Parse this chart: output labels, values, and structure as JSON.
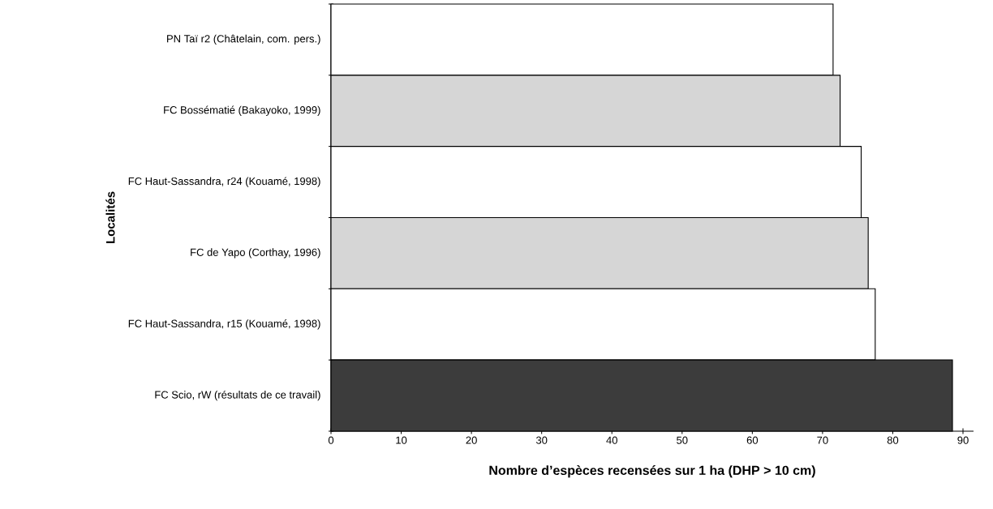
{
  "chart_data": {
    "type": "bar",
    "orientation": "horizontal",
    "xlabel": "Nombre d’espèces recensées sur 1 ha (DHP > 10 cm)",
    "ylabel": "Localités",
    "categories": [
      "PN Taï r2 (Châtelain, com. pers.)",
      "FC Bossématié (Bakayoko, 1999)",
      "FC Haut-Sassandra, r24 (Kouamé, 1998)",
      "FC de Yapo (Corthay, 1996)",
      "FC Haut-Sassandra, r15 (Kouamé, 1998)",
      "FC Scio, rW (résultats de ce travail)"
    ],
    "values": [
      71.5,
      72.5,
      75.5,
      76.5,
      77.5,
      88.5
    ],
    "colors": [
      "#ffffff",
      "#d6d6d6",
      "#ffffff",
      "#d6d6d6",
      "#ffffff",
      "#3c3c3c"
    ],
    "xlim": [
      0,
      91.5
    ],
    "xticks": [
      0,
      10,
      20,
      30,
      40,
      50,
      60,
      70,
      80,
      90
    ],
    "grid": false
  }
}
